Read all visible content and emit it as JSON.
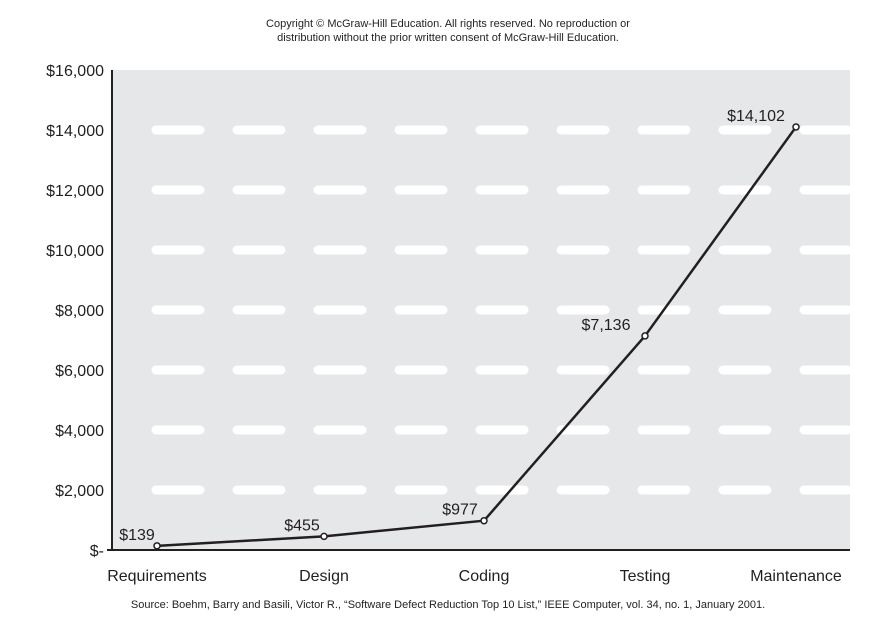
{
  "copyright": {
    "line1": "Copyright © McGraw-Hill Education. All rights reserved. No reproduction or",
    "line2": "distribution without the prior written consent of McGraw-Hill Education."
  },
  "source": "Source: Boehm, Barry and Basili, Victor R., “Software Defect Reduction Top 10 List,” IEEE Computer, vol. 34, no. 1, January 2001.",
  "chart_data": {
    "type": "line",
    "title": "",
    "xlabel": "",
    "ylabel": "",
    "categories": [
      "Requirements",
      "Design",
      "Coding",
      "Testing",
      "Maintenance"
    ],
    "series": [
      {
        "values": [
          139,
          455,
          977,
          7136,
          14102
        ],
        "data_labels": [
          "$139",
          "$455",
          "$977",
          "$7,136",
          "$14,102"
        ]
      }
    ],
    "ylim": [
      0,
      16000
    ],
    "yticks": [
      0,
      2000,
      4000,
      6000,
      8000,
      10000,
      12000,
      14000,
      16000
    ],
    "ytick_labels": [
      "$-",
      "$2,000",
      "$4,000",
      "$6,000",
      "$8,000",
      "$10,000",
      "$12,000",
      "$14,000",
      "$16,000"
    ],
    "grid": "horizontal dashed white",
    "legend": "none",
    "colors": {
      "plot_background": "#e6e7e8",
      "gridline": "#ffffff",
      "line": "#231f20",
      "text": "#231f20"
    }
  }
}
